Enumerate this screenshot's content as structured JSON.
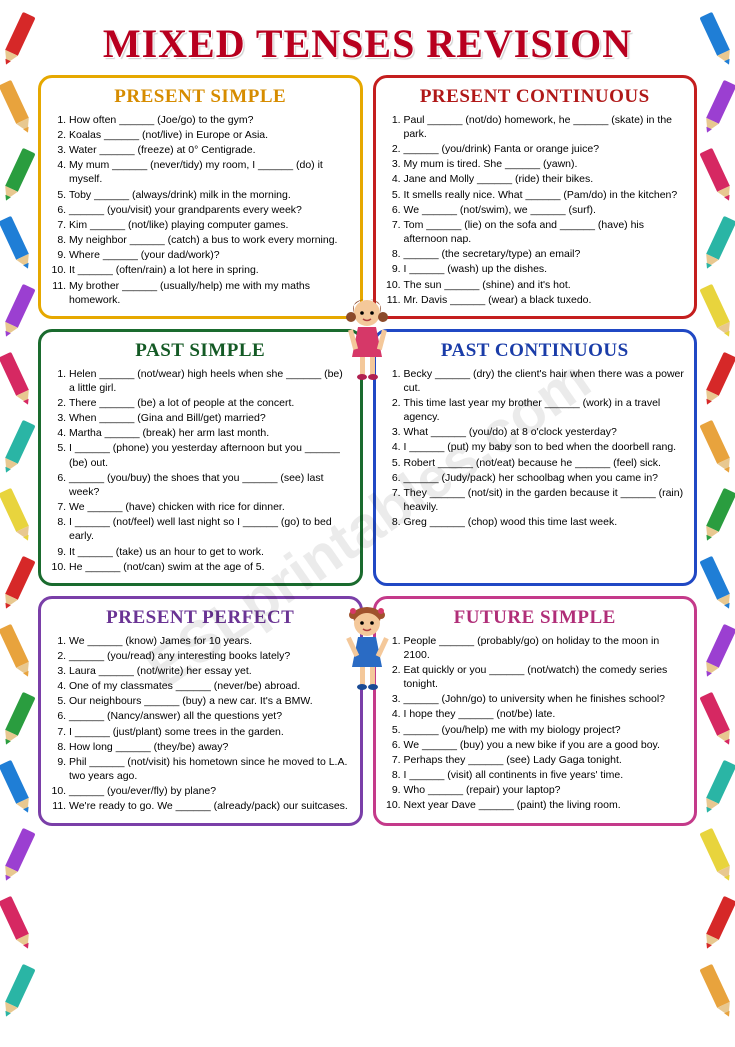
{
  "title": "MIXED TENSES REVISION",
  "watermark": "ESLprintables.com",
  "pencil_colors": [
    "#d62828",
    "#e8a33d",
    "#2a9d3f",
    "#1f7ed6",
    "#9b3fd1",
    "#d62862",
    "#2ab5a5",
    "#e8d43d"
  ],
  "sections": [
    {
      "title": "PRESENT SIMPLE",
      "border_color": "#e6a800",
      "title_color": "#d68c00",
      "items": [
        "How often ______ (Joe/go) to the gym?",
        "Koalas ______ (not/live) in Europe or Asia.",
        "Water ______ (freeze) at 0° Centigrade.",
        "My mum ______ (never/tidy) my room, I ______ (do) it myself.",
        "Toby ______ (always/drink) milk in the morning.",
        "______ (you/visit) your grandparents every week?",
        "Kim ______ (not/like) playing computer games.",
        "My neighbor ______ (catch) a bus to work every morning.",
        "Where ______ (your dad/work)?",
        "It ______ (often/rain) a lot here in spring.",
        "My brother ______ (usually/help) me with my maths homework."
      ]
    },
    {
      "title": "PRESENT CONTINUOUS",
      "border_color": "#c41e1e",
      "title_color": "#b01818",
      "items": [
        "Paul ______ (not/do) homework, he ______ (skate) in the park.",
        "______ (you/drink) Fanta or orange juice?",
        "My mum is tired. She ______ (yawn).",
        "Jane and Molly ______ (ride) their bikes.",
        "It smells really nice. What ______ (Pam/do) in the kitchen?",
        "We ______ (not/swim), we ______ (surf).",
        "Tom ______ (lie) on the sofa and ______ (have) his afternoon nap.",
        "______ (the secretary/type) an email?",
        "I ______ (wash) up the dishes.",
        "The sun ______ (shine) and it's hot.",
        "Mr. Davis ______ (wear) a black tuxedo."
      ]
    },
    {
      "title": "PAST SIMPLE",
      "border_color": "#1a6b2e",
      "title_color": "#145a25",
      "items": [
        "Helen ______ (not/wear) high heels when she ______ (be) a little girl.",
        "There ______ (be) a lot of people at the concert.",
        "When ______ (Gina and Bill/get) married?",
        "Martha ______ (break) her arm last month.",
        "I ______ (phone) you yesterday afternoon but you ______ (be) out.",
        "______ (you/buy) the shoes that you ______ (see) last week?",
        "We ______ (have) chicken with rice for dinner.",
        "I ______ (not/feel) well last night so I ______ (go) to bed early.",
        "It ______ (take) us an hour to get to work.",
        "He ______ (not/can) swim at the age of 5."
      ]
    },
    {
      "title": "PAST CONTINUOUS",
      "border_color": "#2048c4",
      "title_color": "#1a3ca8",
      "items": [
        "Becky ______ (dry) the client's hair when there was a power cut.",
        "This time last year my brother ______ (work) in a travel agency.",
        "What ______ (you/do) at 8 o'clock yesterday?",
        "I ______ (put) my baby son to bed when the doorbell rang.",
        "Robert ______ (not/eat) because he ______ (feel) sick.",
        "______ (Judy/pack) her schoolbag when you came in?",
        "They ______ (not/sit) in the garden because it ______ (rain) heavily.",
        "Greg ______ (chop) wood this time last week."
      ]
    },
    {
      "title": "PRESENT PERFECT",
      "border_color": "#7a3fa8",
      "title_color": "#6a3494",
      "items": [
        "We ______ (know) James for 10 years.",
        "______ (you/read) any interesting books lately?",
        "Laura ______ (not/write) her essay yet.",
        "One of my classmates ______ (never/be) abroad.",
        "Our neighbours ______ (buy) a new car. It's a BMW.",
        "______ (Nancy/answer) all the questions yet?",
        "I ______ (just/plant) some trees in the garden.",
        "How long ______ (they/be) away?",
        "Phil ______ (not/visit) his hometown since he moved to L.A. two years ago.",
        "______ (you/ever/fly) by plane?",
        "We're ready to go. We ______ (already/pack) our suitcases."
      ]
    },
    {
      "title": "FUTURE SIMPLE",
      "border_color": "#c43a8a",
      "title_color": "#b02e78",
      "items": [
        "People ______ (probably/go) on holiday to the moon in 2100.",
        "Eat quickly or you ______ (not/watch) the comedy series tonight.",
        "______ (John/go) to university when he finishes school?",
        "I hope they ______ (not/be) late.",
        "______ (you/help) me with my biology project?",
        "We ______ (buy) you a new bike if you are a good boy.",
        "Perhaps they ______ (see) Lady Gaga tonight.",
        "I ______ (visit) all continents in five years' time.",
        "Who ______ (repair) your laptop?",
        "Next year Dave ______ (paint) the living room."
      ]
    }
  ]
}
